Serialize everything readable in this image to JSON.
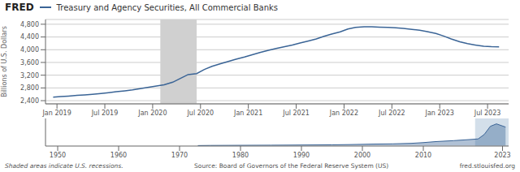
{
  "chart_data": [
    {
      "type": "line",
      "title": "Treasury and Agency Securities, All Commercial Banks",
      "ylabel": "Billions of U.S. Dollars",
      "annotations": [
        "FRED",
        "Shaded areas indicate U.S. recessions.",
        "Source: Board of Governors of the Federal Reserve System (US)",
        "fred.stlouisfed.org"
      ],
      "x": [
        2018.96,
        2019.04,
        2019.12,
        2019.21,
        2019.29,
        2019.37,
        2019.46,
        2019.54,
        2019.62,
        2019.71,
        2019.79,
        2019.87,
        2019.96,
        2020.04,
        2020.12,
        2020.21,
        2020.29,
        2020.37,
        2020.46,
        2020.54,
        2020.62,
        2020.71,
        2020.79,
        2020.87,
        2020.96,
        2021.04,
        2021.12,
        2021.21,
        2021.29,
        2021.37,
        2021.46,
        2021.54,
        2021.62,
        2021.71,
        2021.79,
        2021.87,
        2021.96,
        2022.04,
        2022.12,
        2022.21,
        2022.29,
        2022.37,
        2022.46,
        2022.54,
        2022.62,
        2022.71,
        2022.79,
        2022.87,
        2022.96,
        2023.04,
        2023.12,
        2023.21,
        2023.29,
        2023.37,
        2023.46,
        2023.54,
        2023.62
      ],
      "values": [
        2510,
        2530,
        2545,
        2565,
        2580,
        2600,
        2625,
        2650,
        2680,
        2710,
        2740,
        2780,
        2820,
        2860,
        2900,
        2980,
        3100,
        3220,
        3250,
        3380,
        3480,
        3560,
        3630,
        3700,
        3770,
        3840,
        3910,
        3980,
        4040,
        4090,
        4150,
        4210,
        4270,
        4340,
        4420,
        4490,
        4560,
        4650,
        4700,
        4720,
        4720,
        4710,
        4700,
        4690,
        4670,
        4640,
        4610,
        4570,
        4510,
        4430,
        4340,
        4250,
        4190,
        4150,
        4110,
        4095,
        4090
      ],
      "color": "#3a6496",
      "xlim": [
        2018.88,
        2023.72
      ],
      "xticks": [
        {
          "value": 2019.0,
          "label": "Jan 2019"
        },
        {
          "value": 2019.5,
          "label": "Jul 2019"
        },
        {
          "value": 2020.0,
          "label": "Jan 2020"
        },
        {
          "value": 2020.5,
          "label": "Jul 2020"
        },
        {
          "value": 2021.0,
          "label": "Jan 2021"
        },
        {
          "value": 2021.5,
          "label": "Jul 2021"
        },
        {
          "value": 2022.0,
          "label": "Jan 2022"
        },
        {
          "value": 2022.5,
          "label": "Jul 2022"
        },
        {
          "value": 2023.0,
          "label": "Jan 2023"
        },
        {
          "value": 2023.5,
          "label": "Jul 2023"
        }
      ],
      "ylim": [
        2300,
        4950
      ],
      "yticks": [
        {
          "value": 2400,
          "label": "2,400"
        },
        {
          "value": 2800,
          "label": "2,800"
        },
        {
          "value": 3200,
          "label": "3,200"
        },
        {
          "value": 3600,
          "label": "3,600"
        },
        {
          "value": 4000,
          "label": "4,000"
        },
        {
          "value": 4400,
          "label": "4,400"
        },
        {
          "value": 4800,
          "label": "4,800"
        }
      ],
      "grid": true,
      "recessions": [
        {
          "start": 2020.08,
          "end": 2020.46,
          "color": "#d0d0d0"
        }
      ]
    },
    {
      "type": "area",
      "x": [
        1973,
        1975,
        1978,
        1980,
        1982,
        1985,
        1988,
        1990,
        1992,
        1995,
        1998,
        2000,
        2002,
        2005,
        2008,
        2010,
        2012,
        2015,
        2018,
        2019,
        2020,
        2021,
        2022,
        2023.5
      ],
      "values": [
        0,
        0.005,
        0.008,
        0.01,
        0.012,
        0.015,
        0.018,
        0.022,
        0.025,
        0.03,
        0.04,
        0.05,
        0.06,
        0.07,
        0.09,
        0.12,
        0.16,
        0.2,
        0.25,
        0.27,
        0.45,
        0.78,
        0.88,
        0.75
      ],
      "color": "#3a6496",
      "xlim": [
        1948,
        2024
      ],
      "ylim": [
        -0.02,
        1.1
      ],
      "xticks": [
        1950,
        1960,
        1970,
        1980,
        1990,
        2000,
        2010,
        2023
      ],
      "tick_labels": "x",
      "highlight": {
        "start": 2018.5,
        "end": 2024,
        "color": "#afc4d8"
      }
    }
  ]
}
